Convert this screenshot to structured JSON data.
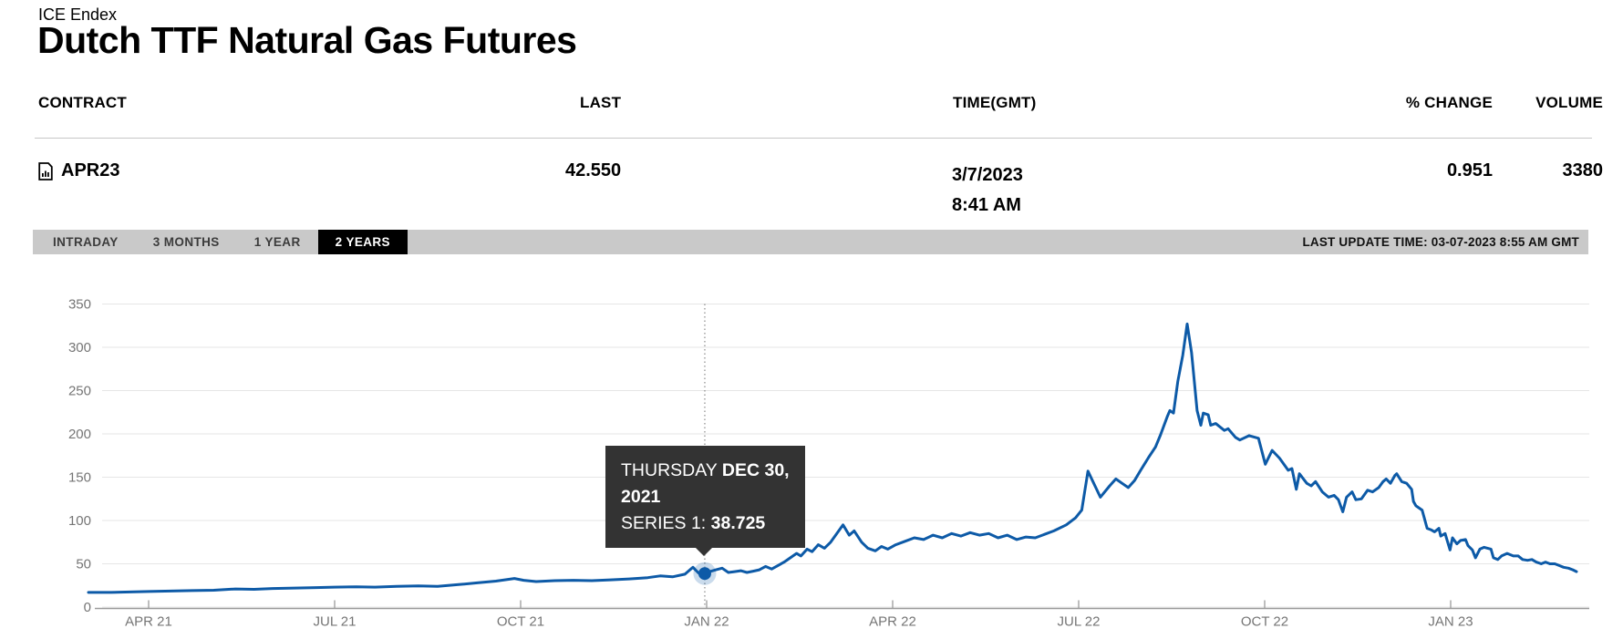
{
  "page": {
    "exchange": "ICE Endex",
    "title": "Dutch TTF Natural Gas Futures"
  },
  "quote_table": {
    "headers": {
      "contract": "CONTRACT",
      "last": "LAST",
      "time": "TIME(GMT)",
      "pct_change": "% CHANGE",
      "volume": "VOLUME"
    },
    "row": {
      "contract": "APR23",
      "last": "42.550",
      "time_date": "3/7/2023",
      "time_clock": "8:41 AM",
      "pct_change": "0.951",
      "volume": "3380"
    }
  },
  "toolbar": {
    "tabs": [
      {
        "label": "INTRADAY",
        "active": false
      },
      {
        "label": "3 MONTHS",
        "active": false
      },
      {
        "label": "1 YEAR",
        "active": false
      },
      {
        "label": "2 YEARS",
        "active": true
      }
    ],
    "last_update": "LAST UPDATE TIME: 03-07-2023 8:55 AM GMT"
  },
  "tooltip": {
    "day": "THURSDAY ",
    "date_bold": "DEC 30, 2021",
    "series_label": "SERIES 1: ",
    "series_value": "38.725"
  },
  "colors": {
    "line_blue": "#0d5aa7",
    "marker_halo": "rgba(13,90,167,0.22)",
    "gridline": "#e6e6e6",
    "axis": "#9b9b9b",
    "axis_label": "#757575",
    "tooltip_bg": "#333333",
    "tab_bar_bg": "#c9c9c9",
    "active_tab_bg": "#000000",
    "dotted_guide": "#8a8a8a"
  },
  "chart_data": {
    "type": "line",
    "title": "Dutch TTF Natural Gas Futures — 2 years",
    "xlabel": "",
    "ylabel": "",
    "x_unit": "months since 2021-04-01",
    "x_range": [
      -0.97,
      23.25
    ],
    "ylim": [
      0,
      367
    ],
    "grid": true,
    "legend": "none",
    "y_ticks": [
      0,
      50,
      100,
      150,
      200,
      250,
      300,
      350
    ],
    "x_ticks": [
      {
        "m": 0,
        "label": "APR 21"
      },
      {
        "m": 3,
        "label": "JUL 21"
      },
      {
        "m": 6,
        "label": "OCT 21"
      },
      {
        "m": 9,
        "label": "JAN 22"
      },
      {
        "m": 12,
        "label": "APR 22"
      },
      {
        "m": 15,
        "label": "JUL 22"
      },
      {
        "m": 18,
        "label": "OCT 22"
      },
      {
        "m": 21,
        "label": "JAN 23"
      }
    ],
    "highlight": {
      "m": 8.97,
      "value": 38.725,
      "label": "THURSDAY DEC 30, 2021 — SERIES 1: 38.725"
    },
    "series": [
      {
        "name": "Series 1",
        "points": [
          [
            -0.97,
            17
          ],
          [
            -0.6,
            17
          ],
          [
            -0.3,
            17.5
          ],
          [
            0,
            18
          ],
          [
            0.35,
            18.5
          ],
          [
            0.7,
            19
          ],
          [
            1.05,
            19.5
          ],
          [
            1.4,
            21
          ],
          [
            1.7,
            20.5
          ],
          [
            2,
            21.5
          ],
          [
            2.35,
            22
          ],
          [
            2.7,
            22.5
          ],
          [
            3,
            23
          ],
          [
            3.35,
            23.5
          ],
          [
            3.65,
            23
          ],
          [
            4,
            24
          ],
          [
            4.35,
            24.5
          ],
          [
            4.66,
            24
          ],
          [
            5,
            26
          ],
          [
            5.3,
            28
          ],
          [
            5.6,
            30
          ],
          [
            5.9,
            33
          ],
          [
            6.05,
            31
          ],
          [
            6.25,
            29.5
          ],
          [
            6.55,
            30.5
          ],
          [
            6.85,
            31
          ],
          [
            7.15,
            30.5
          ],
          [
            7.45,
            31.5
          ],
          [
            7.75,
            32.5
          ],
          [
            8.05,
            34
          ],
          [
            8.25,
            36
          ],
          [
            8.45,
            35
          ],
          [
            8.65,
            38
          ],
          [
            8.78,
            46
          ],
          [
            8.86,
            40
          ],
          [
            8.91,
            37
          ],
          [
            8.97,
            38.725
          ],
          [
            9.05,
            41
          ],
          [
            9.15,
            43
          ],
          [
            9.25,
            45
          ],
          [
            9.35,
            40
          ],
          [
            9.45,
            41
          ],
          [
            9.55,
            42
          ],
          [
            9.65,
            40
          ],
          [
            9.75,
            41.5
          ],
          [
            9.85,
            43
          ],
          [
            9.95,
            47
          ],
          [
            10.05,
            44
          ],
          [
            10.15,
            48
          ],
          [
            10.25,
            52
          ],
          [
            10.35,
            57
          ],
          [
            10.45,
            62
          ],
          [
            10.52,
            59
          ],
          [
            10.62,
            67
          ],
          [
            10.7,
            64
          ],
          [
            10.8,
            72
          ],
          [
            10.9,
            68
          ],
          [
            11,
            75
          ],
          [
            11.1,
            85
          ],
          [
            11.2,
            95
          ],
          [
            11.3,
            83
          ],
          [
            11.38,
            88
          ],
          [
            11.5,
            75
          ],
          [
            11.6,
            68
          ],
          [
            11.72,
            65
          ],
          [
            11.82,
            70
          ],
          [
            11.92,
            67
          ],
          [
            12.05,
            72
          ],
          [
            12.2,
            76
          ],
          [
            12.35,
            80
          ],
          [
            12.5,
            78
          ],
          [
            12.65,
            83
          ],
          [
            12.8,
            80
          ],
          [
            12.95,
            85
          ],
          [
            13.1,
            82
          ],
          [
            13.25,
            86
          ],
          [
            13.4,
            83
          ],
          [
            13.55,
            85
          ],
          [
            13.7,
            80
          ],
          [
            13.85,
            83
          ],
          [
            14,
            78
          ],
          [
            14.15,
            81
          ],
          [
            14.3,
            80
          ],
          [
            14.45,
            84
          ],
          [
            14.6,
            88
          ],
          [
            14.8,
            95
          ],
          [
            14.95,
            103
          ],
          [
            15.05,
            112
          ],
          [
            15.15,
            157
          ],
          [
            15.25,
            142
          ],
          [
            15.35,
            127
          ],
          [
            15.5,
            140
          ],
          [
            15.6,
            148
          ],
          [
            15.7,
            143
          ],
          [
            15.8,
            138
          ],
          [
            15.9,
            146
          ],
          [
            16,
            158
          ],
          [
            16.12,
            172
          ],
          [
            16.24,
            185
          ],
          [
            16.32,
            199
          ],
          [
            16.43,
            220
          ],
          [
            16.47,
            227
          ],
          [
            16.53,
            224
          ],
          [
            16.6,
            261
          ],
          [
            16.68,
            291
          ],
          [
            16.75,
            327
          ],
          [
            16.82,
            294
          ],
          [
            16.84,
            280
          ],
          [
            16.91,
            227
          ],
          [
            16.97,
            210
          ],
          [
            17.01,
            224
          ],
          [
            17.09,
            222
          ],
          [
            17.13,
            210
          ],
          [
            17.21,
            212
          ],
          [
            17.35,
            204
          ],
          [
            17.41,
            206
          ],
          [
            17.53,
            196
          ],
          [
            17.6,
            193
          ],
          [
            17.75,
            198
          ],
          [
            17.9,
            195
          ],
          [
            18.01,
            165
          ],
          [
            18.12,
            181
          ],
          [
            18.24,
            172
          ],
          [
            18.38,
            158
          ],
          [
            18.44,
            160
          ],
          [
            18.51,
            136
          ],
          [
            18.56,
            154
          ],
          [
            18.68,
            143
          ],
          [
            18.75,
            140
          ],
          [
            18.82,
            145
          ],
          [
            18.93,
            133
          ],
          [
            19.03,
            127
          ],
          [
            19.12,
            129
          ],
          [
            19.19,
            124
          ],
          [
            19.26,
            110
          ],
          [
            19.32,
            127
          ],
          [
            19.41,
            133
          ],
          [
            19.47,
            124
          ],
          [
            19.56,
            125
          ],
          [
            19.66,
            135
          ],
          [
            19.74,
            133
          ],
          [
            19.84,
            138
          ],
          [
            19.91,
            145
          ],
          [
            19.96,
            148
          ],
          [
            20.03,
            143
          ],
          [
            20.1,
            152
          ],
          [
            20.13,
            154
          ],
          [
            20.21,
            145
          ],
          [
            20.29,
            143
          ],
          [
            20.37,
            136
          ],
          [
            20.4,
            122
          ],
          [
            20.44,
            117
          ],
          [
            20.54,
            112
          ],
          [
            20.62,
            91
          ],
          [
            20.69,
            89
          ],
          [
            20.74,
            87
          ],
          [
            20.81,
            91
          ],
          [
            20.84,
            82
          ],
          [
            20.91,
            85
          ],
          [
            20.99,
            66
          ],
          [
            21.03,
            80
          ],
          [
            21.1,
            73
          ],
          [
            21.16,
            77
          ],
          [
            21.24,
            78
          ],
          [
            21.28,
            71
          ],
          [
            21.35,
            66
          ],
          [
            21.4,
            57
          ],
          [
            21.47,
            67
          ],
          [
            21.54,
            69
          ],
          [
            21.65,
            67
          ],
          [
            21.69,
            57
          ],
          [
            21.76,
            55
          ],
          [
            21.82,
            59
          ],
          [
            21.91,
            62
          ],
          [
            22.01,
            59
          ],
          [
            22.09,
            59
          ],
          [
            22.16,
            55
          ],
          [
            22.24,
            54
          ],
          [
            22.31,
            55
          ],
          [
            22.38,
            52
          ],
          [
            22.46,
            50
          ],
          [
            22.53,
            52
          ],
          [
            22.6,
            50
          ],
          [
            22.68,
            50
          ],
          [
            22.75,
            48
          ],
          [
            22.82,
            46
          ],
          [
            22.9,
            45
          ],
          [
            22.97,
            43
          ],
          [
            23.03,
            41
          ]
        ]
      }
    ]
  }
}
